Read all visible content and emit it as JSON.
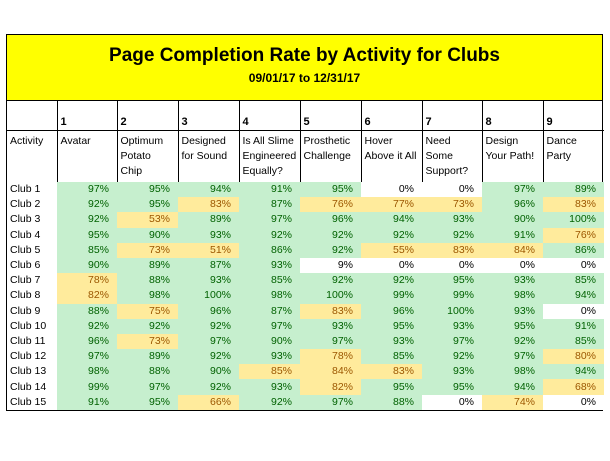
{
  "title": "Page Completion Rate by Activity for Clubs",
  "date_range": "09/01/17 to 12/31/17",
  "header_label": "Activity",
  "activities": [
    {
      "num": "1",
      "name": "Avatar"
    },
    {
      "num": "2",
      "name": "Optimum Potato Chip"
    },
    {
      "num": "3",
      "name": "Designed for Sound"
    },
    {
      "num": "4",
      "name": "Is All Slime Engineered Equally?"
    },
    {
      "num": "5",
      "name": "Prosthetic Challenge"
    },
    {
      "num": "6",
      "name": "Hover Above it All"
    },
    {
      "num": "7",
      "name": "Need Some Support?"
    },
    {
      "num": "8",
      "name": "Design Your Path!"
    },
    {
      "num": "9",
      "name": "Dance Party"
    }
  ],
  "rows": [
    {
      "club": "Club 1",
      "values": [
        "97%",
        "95%",
        "94%",
        "91%",
        "95%",
        "0%",
        "0%",
        "97%",
        "89%"
      ],
      "levels": [
        "hi",
        "hi",
        "hi",
        "hi",
        "hi",
        "lo",
        "lo",
        "hi",
        "hi"
      ]
    },
    {
      "club": "Club 2",
      "values": [
        "92%",
        "95%",
        "83%",
        "87%",
        "76%",
        "77%",
        "73%",
        "96%",
        "83%"
      ],
      "levels": [
        "hi",
        "hi",
        "mid",
        "hi",
        "mid",
        "mid",
        "mid",
        "hi",
        "mid"
      ]
    },
    {
      "club": "Club 3",
      "values": [
        "92%",
        "53%",
        "89%",
        "97%",
        "96%",
        "94%",
        "93%",
        "90%",
        "100%"
      ],
      "levels": [
        "hi",
        "mid",
        "hi",
        "hi",
        "hi",
        "hi",
        "hi",
        "hi",
        "hi"
      ]
    },
    {
      "club": "Club 4",
      "values": [
        "95%",
        "90%",
        "93%",
        "92%",
        "92%",
        "92%",
        "92%",
        "91%",
        "76%"
      ],
      "levels": [
        "hi",
        "hi",
        "hi",
        "hi",
        "hi",
        "hi",
        "hi",
        "hi",
        "mid"
      ]
    },
    {
      "club": "Club 5",
      "values": [
        "85%",
        "73%",
        "51%",
        "86%",
        "92%",
        "55%",
        "83%",
        "84%",
        "86%"
      ],
      "levels": [
        "hi",
        "mid",
        "mid",
        "hi",
        "hi",
        "mid",
        "mid",
        "mid",
        "hi"
      ]
    },
    {
      "club": "Club 6",
      "values": [
        "90%",
        "89%",
        "87%",
        "93%",
        "9%",
        "0%",
        "0%",
        "0%",
        "0%"
      ],
      "levels": [
        "hi",
        "hi",
        "hi",
        "hi",
        "lo",
        "lo",
        "lo",
        "lo",
        "lo"
      ]
    },
    {
      "club": "Club 7",
      "values": [
        "78%",
        "88%",
        "93%",
        "85%",
        "92%",
        "92%",
        "95%",
        "93%",
        "85%"
      ],
      "levels": [
        "mid",
        "hi",
        "hi",
        "hi",
        "hi",
        "hi",
        "hi",
        "hi",
        "hi"
      ]
    },
    {
      "club": "Club 8",
      "values": [
        "82%",
        "98%",
        "100%",
        "98%",
        "100%",
        "99%",
        "99%",
        "98%",
        "94%"
      ],
      "levels": [
        "mid",
        "hi",
        "hi",
        "hi",
        "hi",
        "hi",
        "hi",
        "hi",
        "hi"
      ]
    },
    {
      "club": "Club 9",
      "values": [
        "88%",
        "75%",
        "96%",
        "87%",
        "83%",
        "96%",
        "100%",
        "93%",
        "0%"
      ],
      "levels": [
        "hi",
        "mid",
        "hi",
        "hi",
        "mid",
        "hi",
        "hi",
        "hi",
        "lo"
      ]
    },
    {
      "club": "Club 10",
      "values": [
        "92%",
        "92%",
        "92%",
        "97%",
        "93%",
        "95%",
        "93%",
        "95%",
        "91%"
      ],
      "levels": [
        "hi",
        "hi",
        "hi",
        "hi",
        "hi",
        "hi",
        "hi",
        "hi",
        "hi"
      ]
    },
    {
      "club": "Club 11",
      "values": [
        "96%",
        "73%",
        "97%",
        "90%",
        "97%",
        "93%",
        "97%",
        "92%",
        "85%"
      ],
      "levels": [
        "hi",
        "mid",
        "hi",
        "hi",
        "hi",
        "hi",
        "hi",
        "hi",
        "hi"
      ]
    },
    {
      "club": "Club 12",
      "values": [
        "97%",
        "89%",
        "92%",
        "93%",
        "78%",
        "85%",
        "92%",
        "97%",
        "80%"
      ],
      "levels": [
        "hi",
        "hi",
        "hi",
        "hi",
        "mid",
        "hi",
        "hi",
        "hi",
        "mid"
      ]
    },
    {
      "club": "Club 13",
      "values": [
        "98%",
        "88%",
        "90%",
        "85%",
        "84%",
        "83%",
        "93%",
        "98%",
        "94%"
      ],
      "levels": [
        "hi",
        "hi",
        "hi",
        "mid",
        "mid",
        "mid",
        "hi",
        "hi",
        "hi"
      ]
    },
    {
      "club": "Club 14",
      "values": [
        "99%",
        "97%",
        "92%",
        "93%",
        "82%",
        "95%",
        "95%",
        "94%",
        "68%"
      ],
      "levels": [
        "hi",
        "hi",
        "hi",
        "hi",
        "mid",
        "hi",
        "hi",
        "hi",
        "mid"
      ]
    },
    {
      "club": "Club 15",
      "values": [
        "91%",
        "95%",
        "66%",
        "92%",
        "97%",
        "88%",
        "0%",
        "74%",
        "0%"
      ],
      "levels": [
        "hi",
        "hi",
        "mid",
        "hi",
        "hi",
        "hi",
        "lo",
        "mid",
        "lo"
      ]
    }
  ],
  "colors": {
    "banner": "#ffff00",
    "high_fill": "#c6efce",
    "high_text": "#006100",
    "mid_fill": "#ffeb9c",
    "mid_text": "#9c5700",
    "low_fill": "#ffffff",
    "low_text": "#000000"
  }
}
